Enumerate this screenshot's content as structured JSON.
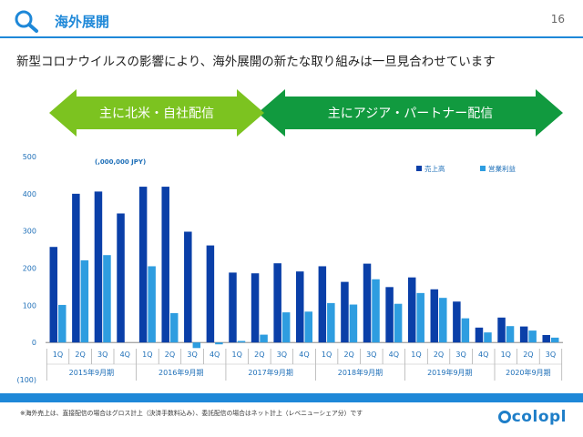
{
  "header": {
    "title": "海外展開",
    "page_number": "16"
  },
  "subtitle": "新型コロナウイルスの影響により、海外展開の新たな取り組みは一旦見合わせています",
  "arrows": {
    "left_label": "主に北米・自社配信",
    "right_label": "主にアジア・パートナー配信",
    "left_color": "#7cc320",
    "right_color": "#119a3f"
  },
  "chart_data": {
    "type": "bar",
    "unit_note": "(,000,000 JPY)",
    "ylim": [
      -100,
      500
    ],
    "yticks": [
      "500",
      "400",
      "300",
      "200",
      "100",
      "0",
      "(100)"
    ],
    "quarters": [
      "1Q",
      "2Q",
      "3Q",
      "4Q",
      "1Q",
      "2Q",
      "3Q",
      "4Q",
      "1Q",
      "2Q",
      "3Q",
      "4Q",
      "1Q",
      "2Q",
      "3Q",
      "4Q",
      "1Q",
      "2Q",
      "3Q",
      "4Q",
      "1Q",
      "2Q",
      "3Q"
    ],
    "periods": [
      "2015年9月期",
      "2016年9月期",
      "2017年9月期",
      "2018年9月期",
      "2019年9月期",
      "2020年9月期"
    ],
    "legend_placement": "top-right",
    "grid": false,
    "series": [
      {
        "name": "売上高",
        "color": "#0a3fa8",
        "values": [
          257,
          400,
          406,
          347,
          419,
          419,
          298,
          261,
          188,
          186,
          213,
          191,
          205,
          163,
          212,
          149,
          175,
          143,
          110,
          40,
          67,
          43,
          20
        ]
      },
      {
        "name": "営業利益",
        "color": "#2e9de0",
        "values": [
          101,
          221,
          235,
          0,
          205,
          79,
          -15,
          -5,
          4,
          21,
          81,
          83,
          106,
          102,
          170,
          104,
          133,
          120,
          65,
          27,
          44,
          32,
          13
        ]
      }
    ]
  },
  "footer": {
    "note": "※海外売上は、直接配信の場合はグロス計上（決済手数料込み）、委託配信の場合はネット計上（レベニューシェア分）です",
    "logo_text": "colopl"
  }
}
